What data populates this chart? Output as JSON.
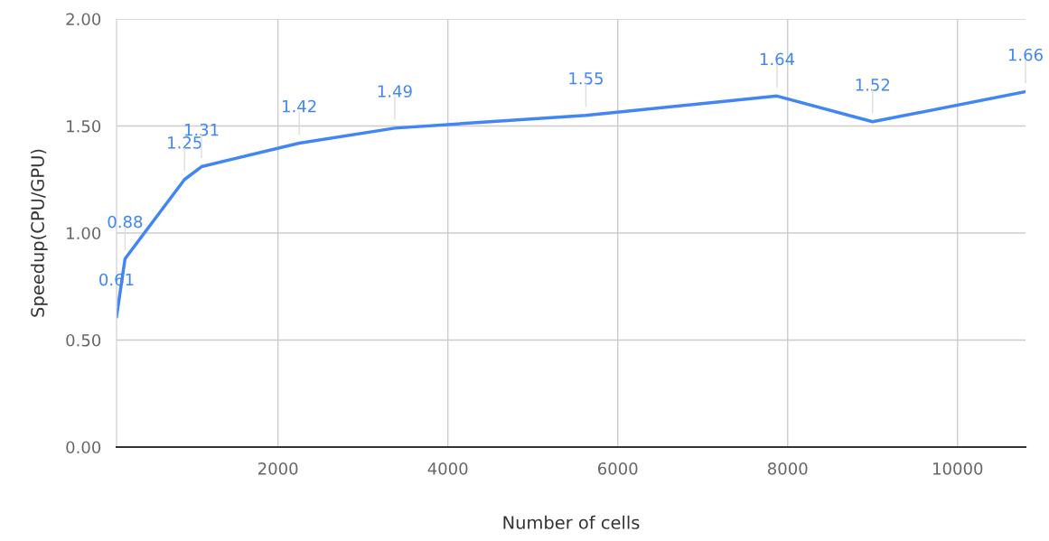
{
  "chart_data": {
    "type": "line",
    "xlabel": "Number of cells",
    "ylabel": "Speedup(CPU/GPU)",
    "x": [
      100,
      200,
      900,
      1100,
      2250,
      3375,
      5625,
      7875,
      9000,
      10800
    ],
    "series": [
      {
        "color": "#4285f4",
        "values": [
          0.61,
          0.88,
          1.25,
          1.31,
          1.42,
          1.49,
          1.55,
          1.64,
          1.52,
          1.66
        ]
      }
    ],
    "xlim": [
      100,
      10800
    ],
    "xticks": [
      2000,
      4000,
      6000,
      8000,
      10000
    ],
    "ylim": [
      0,
      2
    ],
    "yticks": [
      {
        "value": 0,
        "label": "0.00"
      },
      {
        "value": 0.5,
        "label": "0.50"
      },
      {
        "value": 1,
        "label": "1.00"
      },
      {
        "value": 1.5,
        "label": "1.50"
      },
      {
        "value": 2,
        "label": "2.00"
      }
    ],
    "grid": true,
    "data_labels": true,
    "marker": "none",
    "line_style": "solid"
  }
}
